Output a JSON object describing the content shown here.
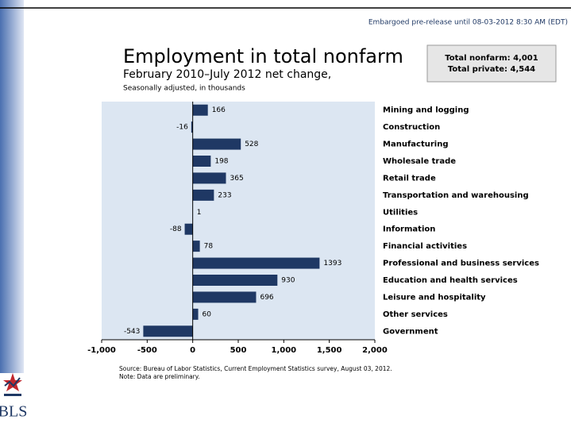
{
  "chart_data": {
    "type": "bar",
    "orientation": "horizontal",
    "embargo": "Embargoed pre-release until 08-03-2012 8:30 AM (EDT)",
    "title": "Employment in total nonfarm",
    "subtitle": "February 2010–July 2012 net change,",
    "unit_note": "Seasonally adjusted, in thousands",
    "summary": [
      "Total nonfarm: 4,001",
      "Total private: 4,544"
    ],
    "categories": [
      "Mining and logging",
      "Construction",
      "Manufacturing",
      "Wholesale trade",
      "Retail trade",
      "Transportation and warehousing",
      "Utilities",
      "Information",
      "Financial activities",
      "Professional and business services",
      "Education and health services",
      "Leisure and hospitality",
      "Other services",
      "Government"
    ],
    "values": [
      166,
      -16,
      528,
      198,
      365,
      233,
      1,
      -88,
      78,
      1393,
      930,
      696,
      60,
      -543
    ],
    "color": "#1f3864",
    "xlim": [
      -1000,
      2000
    ],
    "xticks": [
      {
        "value": -1000,
        "label": "-1,000"
      },
      -500,
      0,
      500,
      {
        "value": 1000,
        "label": "1,000"
      },
      {
        "value": 1500,
        "label": "1,500"
      },
      {
        "value": 2000,
        "label": "2,000"
      }
    ],
    "source": "Source: Bureau of Labor Statistics, Current Employment Statistics survey, August 03, 2012.",
    "note": "Note: Data are preliminary.",
    "logo": "BLS"
  }
}
